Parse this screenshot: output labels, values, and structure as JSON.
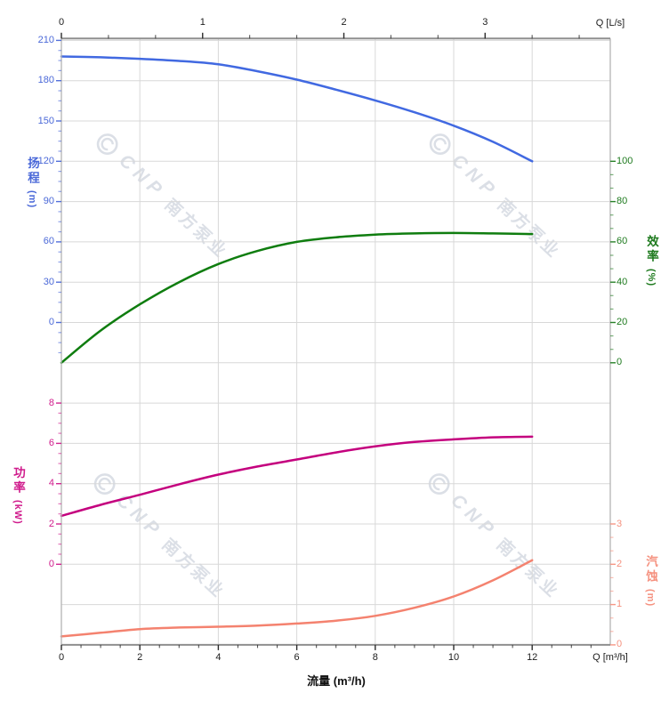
{
  "watermark": {
    "logo": "cnp-circle-logo",
    "cnp": "CNP",
    "brand": "南方泵业",
    "color": "#dbdfe6"
  },
  "axes": {
    "x_bottom": {
      "title": "流量 (m³/h)",
      "corner": "Q [m³/h]",
      "ticks": [
        0,
        2,
        4,
        6,
        8,
        10,
        12
      ],
      "minor_step": 0.5,
      "max": 14,
      "color": "#1c1c1c"
    },
    "x_top": {
      "corner": "Q [L/s]",
      "ticks": [
        0,
        1,
        2,
        3
      ],
      "minor_step": 0.3333,
      "max": 3.886,
      "color": "#1c1c1c"
    },
    "head": {
      "name": "扬程",
      "unit": "(m)",
      "ticks": [
        210,
        180,
        150,
        120,
        90,
        60,
        30,
        0
      ],
      "color": "#4a68d8"
    },
    "efficiency": {
      "name": "效率",
      "unit": "(%)",
      "ticks": [
        100,
        80,
        60,
        40,
        20,
        0
      ],
      "color": "#1e7a1e"
    },
    "power": {
      "name": "功率",
      "unit": "(kW)",
      "ticks": [
        8,
        6,
        4,
        2,
        0
      ],
      "color": "#d01b8c"
    },
    "npsh": {
      "name": "汽蚀",
      "unit": "(m)",
      "ticks": [
        3,
        2,
        1,
        0
      ],
      "color": "#f5917f"
    }
  },
  "chart_data": {
    "type": "line",
    "xlabel": "流量 (m³/h)",
    "x_bottom_unit": "Q [m³/h]",
    "x_top_unit": "Q [L/s]",
    "x": [
      0,
      1,
      2,
      3,
      4,
      5,
      6,
      7,
      8,
      9,
      10,
      11,
      12
    ],
    "grid": true,
    "series": [
      {
        "name": "head",
        "label": "扬程",
        "unit": "m",
        "axis": "head",
        "color": "#4169e1",
        "axis_ticks": [
          210,
          180,
          150,
          120,
          90,
          60,
          30,
          0
        ],
        "values": [
          198,
          197.4,
          196.3,
          194.7,
          192.2,
          187,
          180.8,
          173.3,
          165.3,
          156.5,
          146.5,
          134.5,
          120
        ]
      },
      {
        "name": "efficiency",
        "label": "效率",
        "unit": "%",
        "axis": "efficiency",
        "color": "#0f7d0f",
        "axis_ticks": [
          100,
          80,
          60,
          40,
          20,
          0
        ],
        "values": [
          0,
          16,
          29,
          40,
          49,
          55.5,
          60,
          62.3,
          63.6,
          64.2,
          64.4,
          64.2,
          63.9
        ]
      },
      {
        "name": "power",
        "label": "功率",
        "unit": "kW",
        "axis": "power",
        "color": "#c4017e",
        "axis_ticks": [
          8,
          6,
          4,
          2,
          0
        ],
        "values": [
          2.4,
          2.95,
          3.45,
          3.97,
          4.45,
          4.85,
          5.2,
          5.55,
          5.85,
          6.07,
          6.2,
          6.3,
          6.33
        ]
      },
      {
        "name": "npsh",
        "label": "汽蚀",
        "unit": "m",
        "axis": "npsh",
        "color": "#f4826f",
        "axis_ticks": [
          3,
          2,
          1,
          0
        ],
        "values": [
          0.21,
          0.3,
          0.39,
          0.43,
          0.45,
          0.48,
          0.53,
          0.6,
          0.72,
          0.92,
          1.2,
          1.6,
          2.1
        ]
      }
    ]
  }
}
